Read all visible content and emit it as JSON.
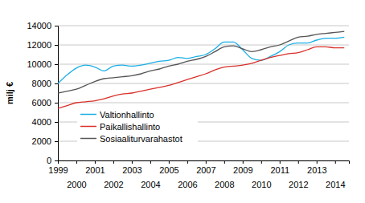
{
  "chart_data": {
    "type": "line",
    "y_label": "milj €",
    "x": [
      1999,
      1999.5,
      2000,
      2000.5,
      2001,
      2001.5,
      2002,
      2002.5,
      2003,
      2003.5,
      2004,
      2004.5,
      2005,
      2005.5,
      2006,
      2006.5,
      2007,
      2007.5,
      2008,
      2008.5,
      2009,
      2009.5,
      2010,
      2010.5,
      2011,
      2011.5,
      2012,
      2012.5,
      2013,
      2013.5,
      2014,
      2014.5
    ],
    "series": [
      {
        "name": "Valtionhallinto",
        "color": "#1aaee5",
        "values": [
          8000,
          8900,
          9600,
          9900,
          9700,
          9300,
          9800,
          9900,
          9800,
          9900,
          10100,
          10300,
          10400,
          10700,
          10600,
          10800,
          11000,
          11600,
          12300,
          12300,
          11500,
          10600,
          10400,
          10800,
          11300,
          12000,
          12200,
          12200,
          12500,
          12700,
          12700,
          12800
        ]
      },
      {
        "name": "Paikallishallinto",
        "color": "#d9302a",
        "values": [
          5400,
          5700,
          6000,
          6100,
          6200,
          6400,
          6700,
          6900,
          7000,
          7200,
          7400,
          7600,
          7800,
          8100,
          8400,
          8700,
          9000,
          9400,
          9700,
          9800,
          9900,
          10100,
          10400,
          10700,
          10900,
          11100,
          11200,
          11500,
          11800,
          11800,
          11700,
          11700
        ]
      },
      {
        "name": "Sosiaaliturvarahastot",
        "color": "#555555",
        "values": [
          7000,
          7200,
          7400,
          7800,
          8200,
          8500,
          8600,
          8700,
          8800,
          9000,
          9300,
          9500,
          9800,
          10000,
          10300,
          10500,
          10800,
          11300,
          11800,
          11900,
          11600,
          11300,
          11500,
          11800,
          12000,
          12400,
          12800,
          12900,
          13100,
          13200,
          13300,
          13400
        ]
      }
    ],
    "xlim": [
      1999,
      2014.75
    ],
    "xticks": [
      1999,
      2000,
      2001,
      2002,
      2003,
      2004,
      2005,
      2006,
      2007,
      2008,
      2009,
      2010,
      2011,
      2012,
      2013,
      2014
    ],
    "ylim": [
      0,
      14000
    ],
    "yticks": [
      0,
      2000,
      4000,
      6000,
      8000,
      10000,
      12000,
      14000
    ],
    "grid": true,
    "legend": "lower left"
  }
}
